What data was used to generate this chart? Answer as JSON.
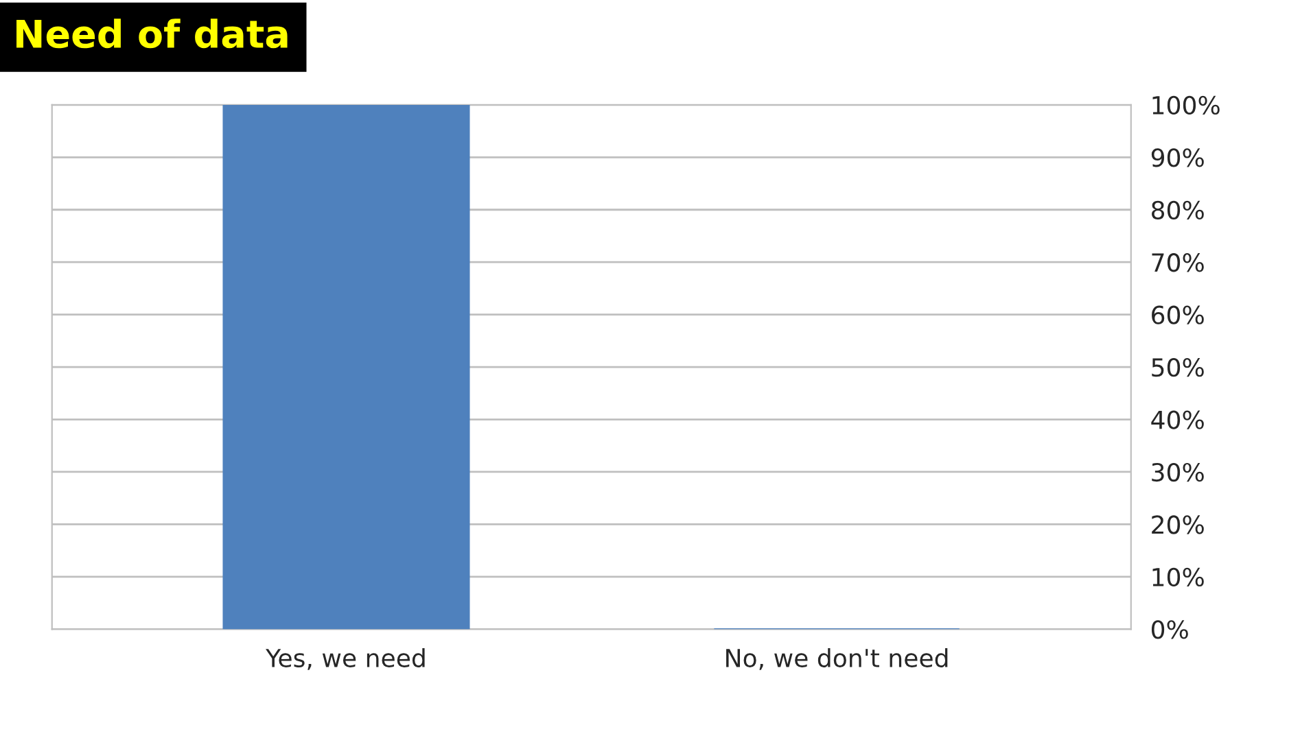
{
  "chart_data": {
    "type": "bar",
    "title": "Need of data",
    "categories": [
      "Yes, we need",
      "No, we don't need"
    ],
    "values": [
      100,
      0
    ],
    "color": "#4f81bd",
    "ylim": [
      0,
      100
    ],
    "yticks": [
      {
        "value": 0,
        "label": "0%"
      },
      {
        "value": 10,
        "label": "10%"
      },
      {
        "value": 20,
        "label": "20%"
      },
      {
        "value": 30,
        "label": "30%"
      },
      {
        "value": 40,
        "label": "40%"
      },
      {
        "value": 50,
        "label": "50%"
      },
      {
        "value": 60,
        "label": "60%"
      },
      {
        "value": 70,
        "label": "70%"
      },
      {
        "value": 80,
        "label": "80%"
      },
      {
        "value": 90,
        "label": "90%"
      },
      {
        "value": 100,
        "label": "100%"
      }
    ],
    "grid": "y"
  }
}
